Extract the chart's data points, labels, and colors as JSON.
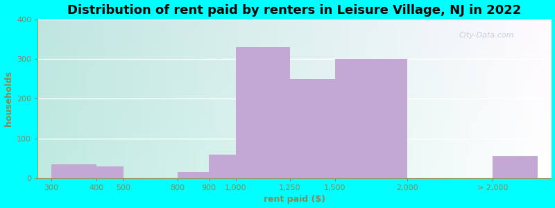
{
  "title": "Distribution of rent paid by renters in Leisure Village, NJ in 2022",
  "xlabel": "rent paid ($)",
  "ylabel": "households",
  "bar_color": "#C4A8D4",
  "ylim": [
    0,
    400
  ],
  "yticks": [
    0,
    100,
    200,
    300,
    400
  ],
  "tick_color": "#888855",
  "axis_color": "#999966",
  "background": "#00FFFF",
  "title_fontsize": 13,
  "label_fontsize": 9,
  "tick_fontsize": 8,
  "watermark": "City-Data.com",
  "tick_positions": [
    0.0,
    1.0,
    1.6,
    2.8,
    3.5,
    4.1,
    5.3,
    6.3,
    7.9,
    9.8
  ],
  "tick_labels": [
    "300",
    "400",
    "500",
    "800",
    "900",
    "1,000",
    "1,250",
    "1,500",
    "2,000",
    "> 2,000"
  ],
  "bar_data": [
    [
      0.0,
      1.0,
      35
    ],
    [
      1.0,
      1.6,
      30
    ],
    [
      2.8,
      3.5,
      15
    ],
    [
      3.5,
      4.1,
      60
    ],
    [
      4.1,
      5.3,
      330
    ],
    [
      5.3,
      6.3,
      250
    ],
    [
      6.3,
      7.9,
      300
    ],
    [
      9.8,
      10.8,
      55
    ]
  ],
  "xlim": [
    -0.3,
    11.1
  ],
  "gradient_colors": [
    "#7EEEDD",
    "#C8EEC8",
    "#F8FFF8",
    "#F8F8FF",
    "#FFFFFF"
  ]
}
